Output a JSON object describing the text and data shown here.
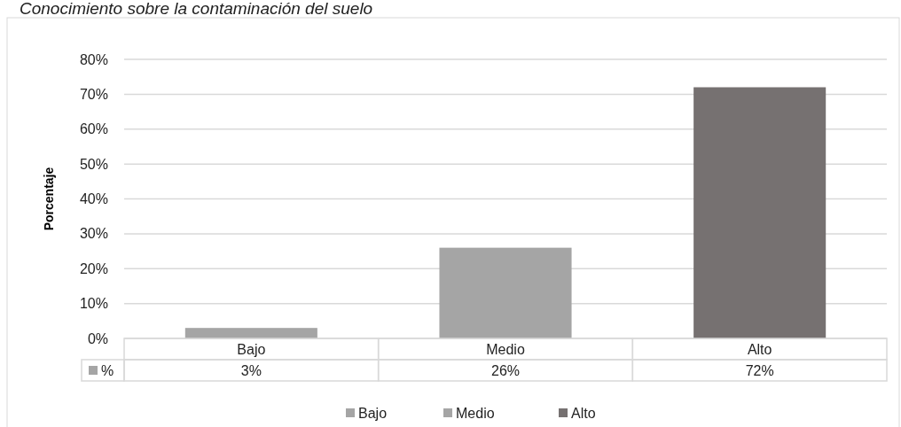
{
  "chart_data": {
    "type": "bar",
    "title": "Conocimiento sobre la contaminación del suelo",
    "ylabel": "Porcentaje",
    "categories": [
      "Bajo",
      "Medio",
      "Alto"
    ],
    "series": [
      {
        "name": "%",
        "color": "#a5a5a5",
        "colors": [
          "#a5a5a5",
          "#a5a5a5",
          "#767171"
        ],
        "values": [
          3,
          26,
          72
        ],
        "value_labels": [
          "3%",
          "26%",
          "72%"
        ]
      }
    ],
    "ylim": [
      0,
      80
    ],
    "yticks": [
      {
        "value": 0,
        "label": "0%"
      },
      {
        "value": 10,
        "label": "10%"
      },
      {
        "value": 20,
        "label": "20%"
      },
      {
        "value": 30,
        "label": "30%"
      },
      {
        "value": 40,
        "label": "40%"
      },
      {
        "value": 50,
        "label": "50%"
      },
      {
        "value": 60,
        "label": "60%"
      },
      {
        "value": 70,
        "label": "70%"
      },
      {
        "value": 80,
        "label": "80%"
      }
    ],
    "grid": "y",
    "legend": "bottom"
  }
}
